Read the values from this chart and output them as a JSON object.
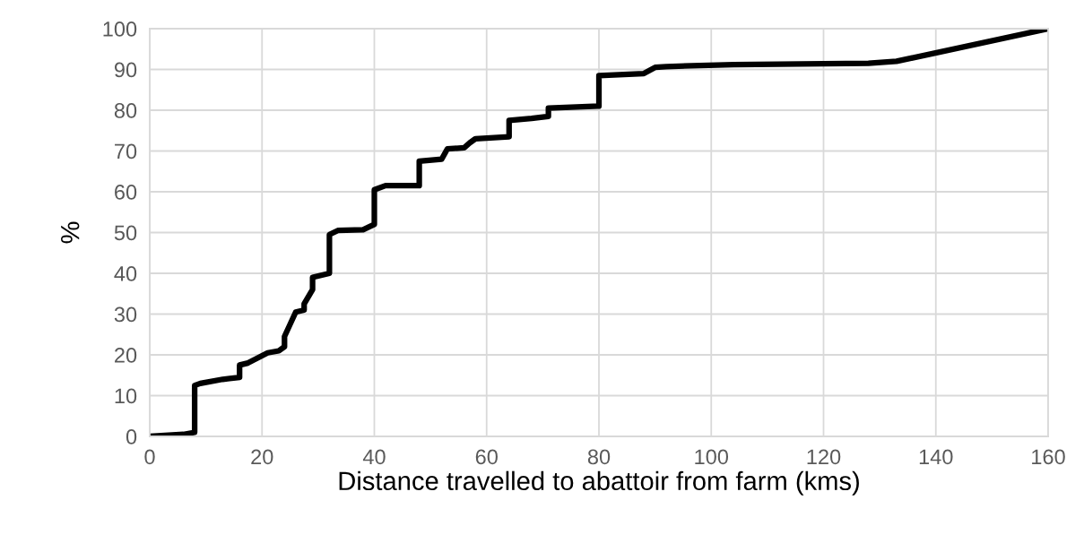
{
  "chart_data": {
    "type": "line",
    "xlabel": "Distance travelled to abattoir from farm (kms)",
    "ylabel": "%",
    "xlim": [
      0,
      160
    ],
    "xticks": [
      0,
      20,
      40,
      60,
      80,
      100,
      120,
      140,
      160
    ],
    "ylim": [
      0,
      100
    ],
    "yticks": [
      0,
      10,
      20,
      30,
      40,
      50,
      60,
      70,
      80,
      90,
      100
    ],
    "grid": true,
    "marker": "none",
    "line_style": "solid",
    "series": [
      {
        "color": "#000000",
        "x": [
          0,
          6,
          8,
          8,
          9,
          13,
          16,
          16,
          17.5,
          21,
          23,
          24,
          24,
          26,
          27.5,
          27.5,
          29,
          29,
          32,
          32,
          33.5,
          38,
          40,
          40,
          42,
          48,
          48,
          52,
          53,
          56,
          57,
          58,
          64,
          64,
          68,
          71,
          71,
          80,
          80,
          88,
          90,
          92,
          104,
          128,
          133,
          160
        ],
        "values": [
          0,
          0.5,
          1,
          12.5,
          13,
          14,
          14.5,
          17.5,
          18,
          20.5,
          21,
          22,
          24.5,
          30.5,
          31,
          32.5,
          36,
          39,
          40,
          49.5,
          50.5,
          50.7,
          52,
          60.5,
          61.5,
          61.5,
          67.5,
          68,
          70.5,
          70.8,
          72,
          73,
          73.5,
          77.5,
          78,
          78.5,
          80.5,
          81,
          88.5,
          89,
          90.5,
          90.7,
          91.2,
          91.5,
          92,
          100
        ]
      }
    ]
  }
}
